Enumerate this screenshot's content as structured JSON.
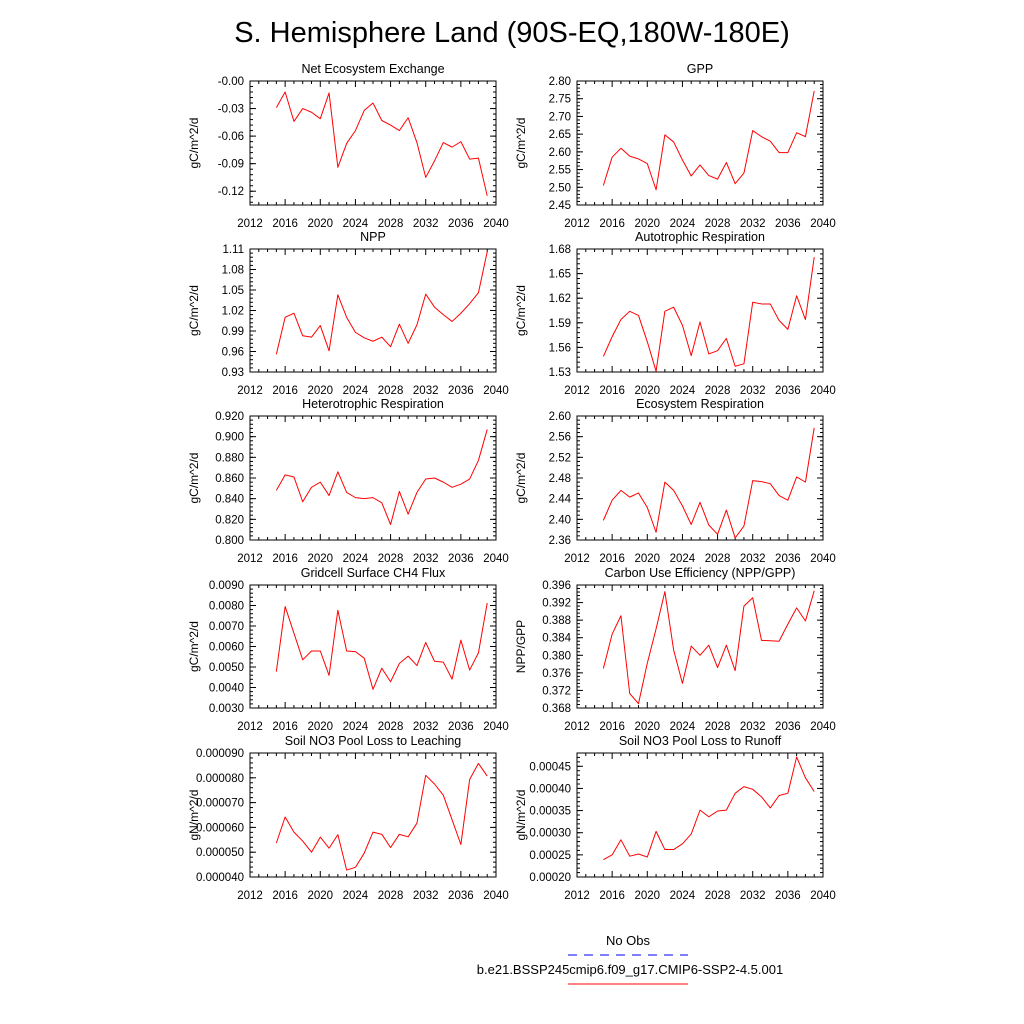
{
  "figure": {
    "title": "S. Hemisphere Land (90S-EQ,180W-180E)",
    "colors": {
      "model": "#ff0000",
      "obs": "#0000ff",
      "axis": "#000000"
    }
  },
  "legend": {
    "obs_label": "No Obs",
    "model_label": "b.e21.BSSP245cmip6.f09_g17.CMIP6-SSP2-4.5.001"
  },
  "chart_data": [
    {
      "type": "line",
      "title": "Net Ecosystem Exchange",
      "ylabel": "gC/m^2/d",
      "xlim": [
        2012,
        2040
      ],
      "ylim": [
        -0.135,
        0
      ],
      "x_ticks": [
        2012,
        2016,
        2020,
        2024,
        2028,
        2032,
        2036,
        2040
      ],
      "y_ticks": [
        "-0.00",
        "-0.03",
        "-0.06",
        "-0.09",
        "-0.12"
      ],
      "y_tick_values": [
        0,
        -0.03,
        -0.06,
        -0.09,
        -0.12
      ],
      "series": [
        {
          "x": [
            2015,
            2016,
            2017,
            2018,
            2019,
            2020,
            2021,
            2022,
            2023,
            2024,
            2025,
            2026,
            2027,
            2028,
            2029,
            2030,
            2031,
            2032,
            2033,
            2034,
            2035,
            2036,
            2037,
            2038,
            2039
          ],
          "values": [
            -0.029,
            -0.012,
            -0.044,
            -0.03,
            -0.034,
            -0.041,
            -0.013,
            -0.094,
            -0.068,
            -0.054,
            -0.032,
            -0.024,
            -0.043,
            -0.048,
            -0.054,
            -0.04,
            -0.067,
            -0.105,
            -0.087,
            -0.067,
            -0.072,
            -0.066,
            -0.085,
            -0.084,
            -0.125
          ]
        }
      ]
    },
    {
      "type": "line",
      "title": "GPP",
      "ylabel": "gC/m^2/d",
      "xlim": [
        2012,
        2040
      ],
      "ylim": [
        2.45,
        2.8
      ],
      "x_ticks": [
        2012,
        2016,
        2020,
        2024,
        2028,
        2032,
        2036,
        2040
      ],
      "y_ticks": [
        "2.80",
        "2.75",
        "2.70",
        "2.65",
        "2.60",
        "2.55",
        "2.50",
        "2.45"
      ],
      "y_tick_values": [
        2.8,
        2.75,
        2.7,
        2.65,
        2.6,
        2.55,
        2.5,
        2.45
      ],
      "series": [
        {
          "x": [
            2015,
            2016,
            2017,
            2018,
            2019,
            2020,
            2021,
            2022,
            2023,
            2024,
            2025,
            2026,
            2027,
            2028,
            2029,
            2030,
            2031,
            2032,
            2033,
            2034,
            2035,
            2036,
            2037,
            2038,
            2039
          ],
          "values": [
            2.505,
            2.585,
            2.61,
            2.588,
            2.58,
            2.567,
            2.493,
            2.648,
            2.628,
            2.577,
            2.532,
            2.563,
            2.533,
            2.523,
            2.57,
            2.51,
            2.54,
            2.66,
            2.643,
            2.63,
            2.598,
            2.598,
            2.654,
            2.643,
            2.772
          ]
        }
      ]
    },
    {
      "type": "line",
      "title": "NPP",
      "ylabel": "gC/m^2/d",
      "xlim": [
        2012,
        2040
      ],
      "ylim": [
        0.93,
        1.11
      ],
      "x_ticks": [
        2012,
        2016,
        2020,
        2024,
        2028,
        2032,
        2036,
        2040
      ],
      "y_ticks": [
        "1.11",
        "1.08",
        "1.05",
        "1.02",
        "0.99",
        "0.96",
        "0.93"
      ],
      "y_tick_values": [
        1.11,
        1.08,
        1.05,
        1.02,
        0.99,
        0.96,
        0.93
      ],
      "series": [
        {
          "x": [
            2015,
            2016,
            2017,
            2018,
            2019,
            2020,
            2021,
            2022,
            2023,
            2024,
            2025,
            2026,
            2027,
            2028,
            2029,
            2030,
            2031,
            2032,
            2033,
            2034,
            2035,
            2036,
            2037,
            2038,
            2039
          ],
          "values": [
            0.956,
            1.01,
            1.016,
            0.983,
            0.981,
            0.998,
            0.961,
            1.043,
            1.01,
            0.988,
            0.98,
            0.975,
            0.981,
            0.967,
            1.0,
            0.972,
            0.999,
            1.044,
            1.025,
            1.014,
            1.004,
            1.016,
            1.03,
            1.046,
            1.106
          ]
        }
      ]
    },
    {
      "type": "line",
      "title": "Autotrophic Respiration",
      "ylabel": "gC/m^2/d",
      "xlim": [
        2012,
        2040
      ],
      "ylim": [
        1.53,
        1.68
      ],
      "x_ticks": [
        2012,
        2016,
        2020,
        2024,
        2028,
        2032,
        2036,
        2040
      ],
      "y_ticks": [
        "1.68",
        "1.65",
        "1.62",
        "1.59",
        "1.56",
        "1.53"
      ],
      "y_tick_values": [
        1.68,
        1.65,
        1.62,
        1.59,
        1.56,
        1.53
      ],
      "series": [
        {
          "x": [
            2015,
            2016,
            2017,
            2018,
            2019,
            2020,
            2021,
            2022,
            2023,
            2024,
            2025,
            2026,
            2027,
            2028,
            2029,
            2030,
            2031,
            2032,
            2033,
            2034,
            2035,
            2036,
            2037,
            2038,
            2039
          ],
          "values": [
            1.549,
            1.573,
            1.594,
            1.604,
            1.599,
            1.567,
            1.531,
            1.604,
            1.609,
            1.587,
            1.55,
            1.591,
            1.552,
            1.556,
            1.571,
            1.537,
            1.54,
            1.615,
            1.613,
            1.613,
            1.593,
            1.582,
            1.623,
            1.594,
            1.67
          ]
        }
      ]
    },
    {
      "type": "line",
      "title": "Heterotrophic Respiration",
      "ylabel": "gC/m^2/d",
      "xlim": [
        2012,
        2040
      ],
      "ylim": [
        0.8,
        0.92
      ],
      "x_ticks": [
        2012,
        2016,
        2020,
        2024,
        2028,
        2032,
        2036,
        2040
      ],
      "y_ticks": [
        "0.920",
        "0.900",
        "0.880",
        "0.860",
        "0.840",
        "0.820",
        "0.800"
      ],
      "y_tick_values": [
        0.92,
        0.9,
        0.88,
        0.86,
        0.84,
        0.82,
        0.8
      ],
      "series": [
        {
          "x": [
            2015,
            2016,
            2017,
            2018,
            2019,
            2020,
            2021,
            2022,
            2023,
            2024,
            2025,
            2026,
            2027,
            2028,
            2029,
            2030,
            2031,
            2032,
            2033,
            2034,
            2035,
            2036,
            2037,
            2038,
            2039
          ],
          "values": [
            0.848,
            0.863,
            0.861,
            0.837,
            0.851,
            0.856,
            0.843,
            0.866,
            0.846,
            0.841,
            0.84,
            0.841,
            0.836,
            0.815,
            0.847,
            0.825,
            0.846,
            0.859,
            0.86,
            0.856,
            0.851,
            0.854,
            0.859,
            0.877,
            0.907
          ]
        }
      ]
    },
    {
      "type": "line",
      "title": "Ecosystem Respiration",
      "ylabel": "gC/m^2/d",
      "xlim": [
        2012,
        2040
      ],
      "ylim": [
        2.36,
        2.6
      ],
      "x_ticks": [
        2012,
        2016,
        2020,
        2024,
        2028,
        2032,
        2036,
        2040
      ],
      "y_ticks": [
        "2.60",
        "2.56",
        "2.52",
        "2.48",
        "2.44",
        "2.40",
        "2.36"
      ],
      "y_tick_values": [
        2.6,
        2.56,
        2.52,
        2.48,
        2.44,
        2.4,
        2.36
      ],
      "series": [
        {
          "x": [
            2015,
            2016,
            2017,
            2018,
            2019,
            2020,
            2021,
            2022,
            2023,
            2024,
            2025,
            2026,
            2027,
            2028,
            2029,
            2030,
            2031,
            2032,
            2033,
            2034,
            2035,
            2036,
            2037,
            2038,
            2039
          ],
          "values": [
            2.398,
            2.437,
            2.456,
            2.443,
            2.451,
            2.423,
            2.375,
            2.472,
            2.456,
            2.426,
            2.39,
            2.433,
            2.389,
            2.371,
            2.418,
            2.364,
            2.387,
            2.475,
            2.473,
            2.469,
            2.446,
            2.437,
            2.482,
            2.472,
            2.577
          ]
        }
      ]
    },
    {
      "type": "line",
      "title": "Gridcell Surface CH4 Flux",
      "ylabel": "gC/m^2/d",
      "xlim": [
        2012,
        2040
      ],
      "ylim": [
        0.003,
        0.009
      ],
      "x_ticks": [
        2012,
        2016,
        2020,
        2024,
        2028,
        2032,
        2036,
        2040
      ],
      "y_ticks": [
        "0.0090",
        "0.0080",
        "0.0070",
        "0.0060",
        "0.0050",
        "0.0040",
        "0.0030"
      ],
      "y_tick_values": [
        0.009,
        0.008,
        0.007,
        0.006,
        0.005,
        0.004,
        0.003
      ],
      "series": [
        {
          "x": [
            2015,
            2016,
            2017,
            2018,
            2019,
            2020,
            2021,
            2022,
            2023,
            2024,
            2025,
            2026,
            2027,
            2028,
            2029,
            2030,
            2031,
            2032,
            2033,
            2034,
            2035,
            2036,
            2037,
            2038,
            2039
          ],
          "values": [
            0.00478,
            0.00795,
            0.00665,
            0.00535,
            0.00578,
            0.00578,
            0.00459,
            0.00777,
            0.00578,
            0.00575,
            0.00543,
            0.00391,
            0.00494,
            0.00428,
            0.00517,
            0.00553,
            0.00507,
            0.0062,
            0.00528,
            0.00524,
            0.00441,
            0.00631,
            0.00485,
            0.00569,
            0.00812
          ]
        }
      ]
    },
    {
      "type": "line",
      "title": "Carbon Use Efficiency (NPP/GPP)",
      "ylabel": "NPP/GPP",
      "xlim": [
        2012,
        2040
      ],
      "ylim": [
        0.368,
        0.396
      ],
      "x_ticks": [
        2012,
        2016,
        2020,
        2024,
        2028,
        2032,
        2036,
        2040
      ],
      "y_ticks": [
        "0.396",
        "0.392",
        "0.388",
        "0.384",
        "0.380",
        "0.376",
        "0.372",
        "0.368"
      ],
      "y_tick_values": [
        0.396,
        0.392,
        0.388,
        0.384,
        0.38,
        0.376,
        0.372,
        0.368
      ],
      "series": [
        {
          "x": [
            2015,
            2016,
            2017,
            2018,
            2019,
            2020,
            2021,
            2022,
            2023,
            2024,
            2025,
            2026,
            2027,
            2028,
            2029,
            2030,
            2031,
            2032,
            2033,
            2034,
            2035,
            2036,
            2037,
            2038,
            2039
          ],
          "values": [
            0.377,
            0.3848,
            0.389,
            0.3713,
            0.369,
            0.3782,
            0.386,
            0.3945,
            0.3812,
            0.3736,
            0.3821,
            0.38,
            0.3823,
            0.3772,
            0.3823,
            0.3765,
            0.3912,
            0.3931,
            0.3834,
            0.3833,
            0.3832,
            0.3871,
            0.3908,
            0.3878,
            0.3947
          ]
        }
      ]
    },
    {
      "type": "line",
      "title": "Soil NO3 Pool Loss to Leaching",
      "ylabel": "gN/m^2/d",
      "xlim": [
        2012,
        2040
      ],
      "ylim": [
        4e-05,
        9e-05
      ],
      "x_ticks": [
        2012,
        2016,
        2020,
        2024,
        2028,
        2032,
        2036,
        2040
      ],
      "y_ticks": [
        "0.000090",
        "0.000080",
        "0.000070",
        "0.000060",
        "0.000050",
        "0.000040"
      ],
      "y_tick_values": [
        9e-05,
        8e-05,
        7e-05,
        6e-05,
        5e-05,
        4e-05
      ],
      "series": [
        {
          "x": [
            2015,
            2016,
            2017,
            2018,
            2019,
            2020,
            2021,
            2022,
            2023,
            2024,
            2025,
            2026,
            2027,
            2028,
            2029,
            2030,
            2031,
            2032,
            2033,
            2034,
            2035,
            2036,
            2037,
            2038,
            2039
          ],
          "values": [
            5.37e-05,
            6.42e-05,
            5.81e-05,
            5.45e-05,
            5e-05,
            5.61e-05,
            5.16e-05,
            5.71e-05,
            4.28e-05,
            4.39e-05,
            4.96e-05,
            5.81e-05,
            5.72e-05,
            5.19e-05,
            5.72e-05,
            5.62e-05,
            6.17e-05,
            8.1e-05,
            7.75e-05,
            7.3e-05,
            6.31e-05,
            5.31e-05,
            7.93e-05,
            8.58e-05,
            8.07e-05
          ]
        }
      ]
    },
    {
      "type": "line",
      "title": "Soil NO3 Pool Loss to Runoff",
      "ylabel": "gN/m^2/d",
      "xlim": [
        2012,
        2040
      ],
      "ylim": [
        0.0002,
        0.00048
      ],
      "x_ticks": [
        2012,
        2016,
        2020,
        2024,
        2028,
        2032,
        2036,
        2040
      ],
      "y_ticks": [
        "0.00045",
        "0.00040",
        "0.00035",
        "0.00030",
        "0.00025",
        "0.00020"
      ],
      "y_tick_values": [
        0.00045,
        0.0004,
        0.00035,
        0.0003,
        0.00025,
        0.0002
      ],
      "series": [
        {
          "x": [
            2015,
            2016,
            2017,
            2018,
            2019,
            2020,
            2021,
            2022,
            2023,
            2024,
            2025,
            2026,
            2027,
            2028,
            2029,
            2030,
            2031,
            2032,
            2033,
            2034,
            2035,
            2036,
            2037,
            2038,
            2039
          ],
          "values": [
            0.000239,
            0.00025,
            0.000284,
            0.000247,
            0.000252,
            0.000245,
            0.000303,
            0.000262,
            0.000262,
            0.000275,
            0.000297,
            0.000351,
            0.000336,
            0.000349,
            0.000351,
            0.000389,
            0.000404,
            0.000398,
            0.000381,
            0.000356,
            0.000384,
            0.000389,
            0.000471,
            0.000424,
            0.000393
          ]
        }
      ]
    }
  ]
}
